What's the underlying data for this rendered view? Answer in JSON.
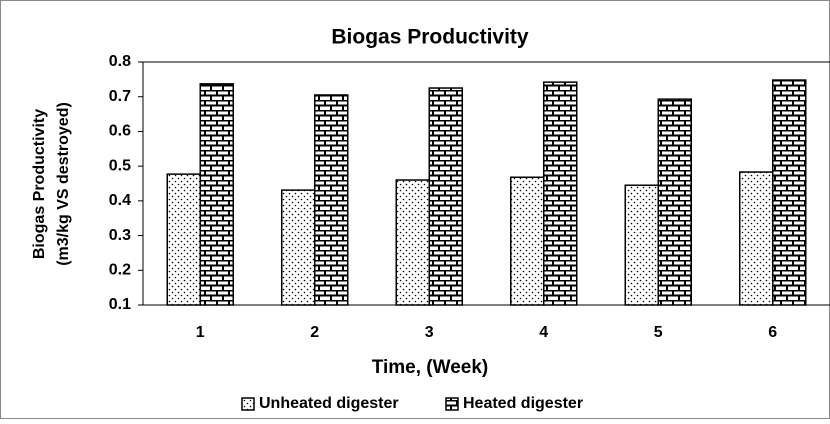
{
  "chart_data": {
    "type": "bar",
    "title": "Biogas Productivity",
    "xlabel": "Time, (Week)",
    "ylabel": [
      "Biogas Productivity",
      "(m3/kg VS destroyed)"
    ],
    "categories": [
      "1",
      "2",
      "3",
      "4",
      "5",
      "6"
    ],
    "series": [
      {
        "name": "Unheated digester",
        "color": "#ffffff",
        "pattern": "dots",
        "values": [
          0.477,
          0.431,
          0.46,
          0.468,
          0.445,
          0.483
        ]
      },
      {
        "name": "Heated digester",
        "color": "#ffffff",
        "pattern": "bricks",
        "values": [
          0.737,
          0.705,
          0.725,
          0.742,
          0.693,
          0.748
        ]
      }
    ],
    "ylim": [
      0.1,
      0.8
    ],
    "yticks": [
      0.1,
      0.2,
      0.3,
      0.4,
      0.5,
      0.6,
      0.7,
      0.8
    ],
    "grid": false,
    "legend": "bottom"
  }
}
